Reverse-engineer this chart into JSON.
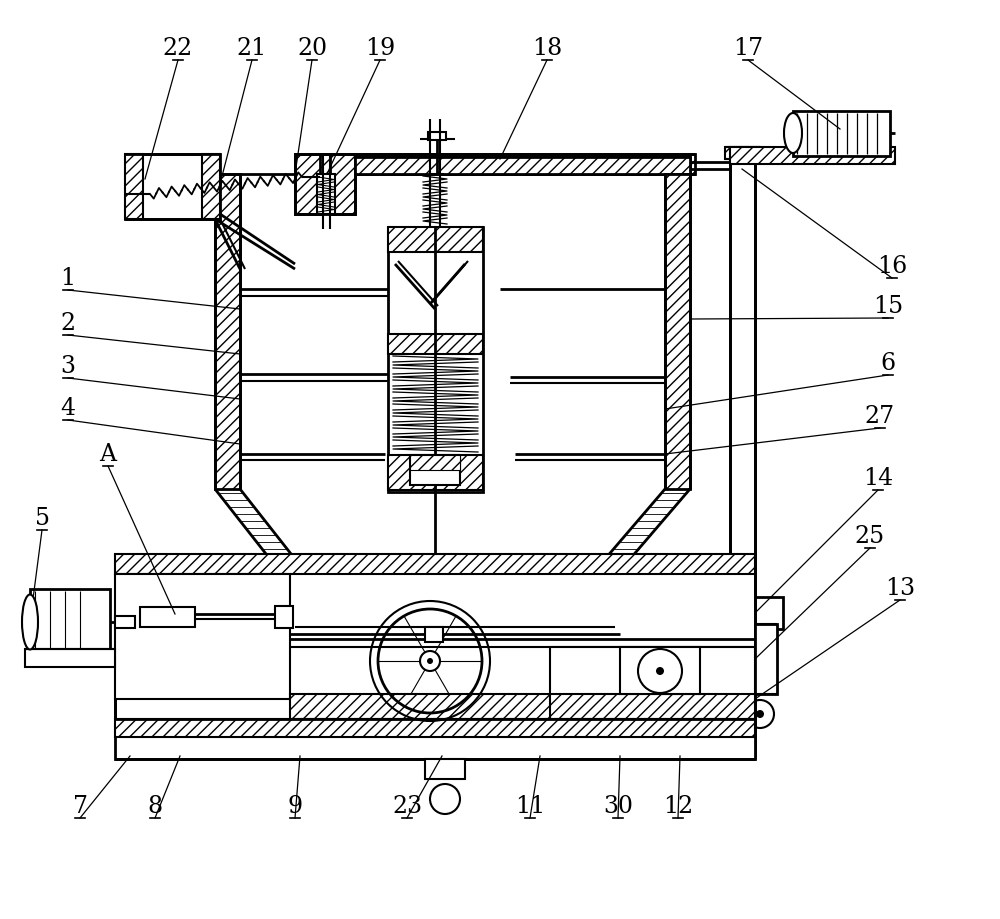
{
  "bg_color": "#ffffff",
  "line_color": "#000000",
  "figsize": [
    10,
    9.2
  ],
  "dpi": 100,
  "label_fontsize": 17
}
